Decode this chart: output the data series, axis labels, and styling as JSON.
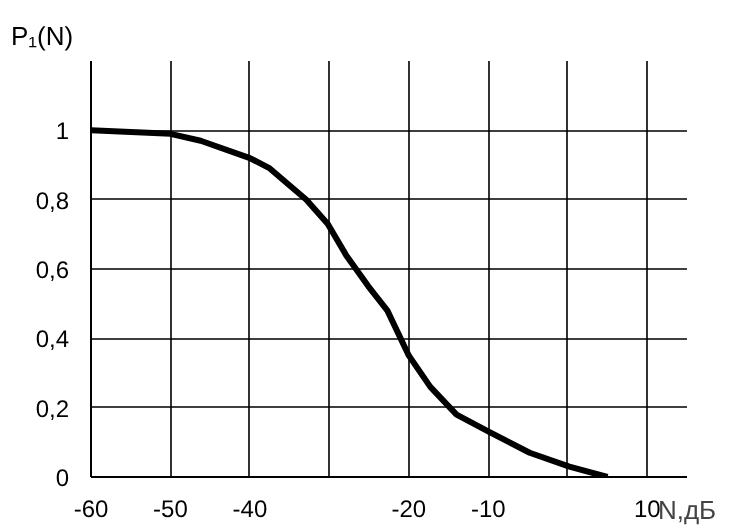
{
  "chart_data": {
    "type": "line",
    "xlabel": "N,дБ",
    "ylabel": "P₁(N)",
    "x": [
      -60,
      -50,
      -46.2,
      -40,
      -37.5,
      -32.9,
      -30.2,
      -27.9,
      -25.1,
      -22.7,
      -20,
      -17.3,
      -14,
      -9.9,
      -4.8,
      0.2,
      5
    ],
    "series": [
      {
        "color": "#000000",
        "values": [
          1.0,
          0.99,
          0.97,
          0.92,
          0.89,
          0.8,
          0.73,
          0.64,
          0.55,
          0.48,
          0.35,
          0.26,
          0.18,
          0.13,
          0.07,
          0.03,
          0.0
        ]
      }
    ],
    "xlim": [
      -60,
      15
    ],
    "ylim": [
      0,
      1.2
    ],
    "xticks": [
      -60,
      -50,
      -40,
      {
        "value": -30,
        "label": null
      },
      -20,
      -10,
      {
        "value": 0,
        "label": null
      },
      10
    ],
    "yticks": [
      {
        "value": 0,
        "label": "0"
      },
      {
        "value": 0.2,
        "label": "0,2"
      },
      {
        "value": 0.4,
        "label": "0,4"
      },
      {
        "value": 0.6,
        "label": "0,6"
      },
      {
        "value": 0.8,
        "label": "0,8"
      },
      {
        "value": 1,
        "label": "1"
      }
    ],
    "grid": true,
    "line_style": "solid"
  }
}
